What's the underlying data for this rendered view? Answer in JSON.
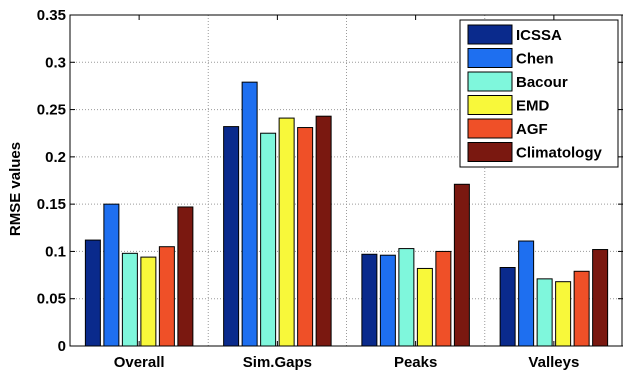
{
  "chart_data": {
    "type": "bar",
    "title": "",
    "xlabel": "",
    "ylabel": "RMSE values",
    "ylim": [
      0,
      0.35
    ],
    "yticks": [
      "0",
      "0.05",
      "0.1",
      "0.15",
      "0.2",
      "0.25",
      "0.3",
      "0.35"
    ],
    "grid": true,
    "legend_position": "top-right",
    "categories": [
      "Overall",
      "Sim.Gaps",
      "Peaks",
      "Valleys"
    ],
    "series": [
      {
        "name": "ICSSA",
        "color": "#0a2a8c",
        "values": [
          0.112,
          0.232,
          0.097,
          0.083
        ]
      },
      {
        "name": "Chen",
        "color": "#1e6ff0",
        "values": [
          0.15,
          0.279,
          0.096,
          0.111
        ]
      },
      {
        "name": "Bacour",
        "color": "#7ff7dc",
        "values": [
          0.098,
          0.225,
          0.103,
          0.071
        ]
      },
      {
        "name": "EMD",
        "color": "#f8f83a",
        "values": [
          0.094,
          0.241,
          0.082,
          0.068
        ]
      },
      {
        "name": "AGF",
        "color": "#ef5028",
        "values": [
          0.105,
          0.231,
          0.1,
          0.079
        ]
      },
      {
        "name": "Climatology",
        "color": "#7a1810",
        "values": [
          0.147,
          0.243,
          0.171,
          0.102
        ]
      }
    ]
  }
}
